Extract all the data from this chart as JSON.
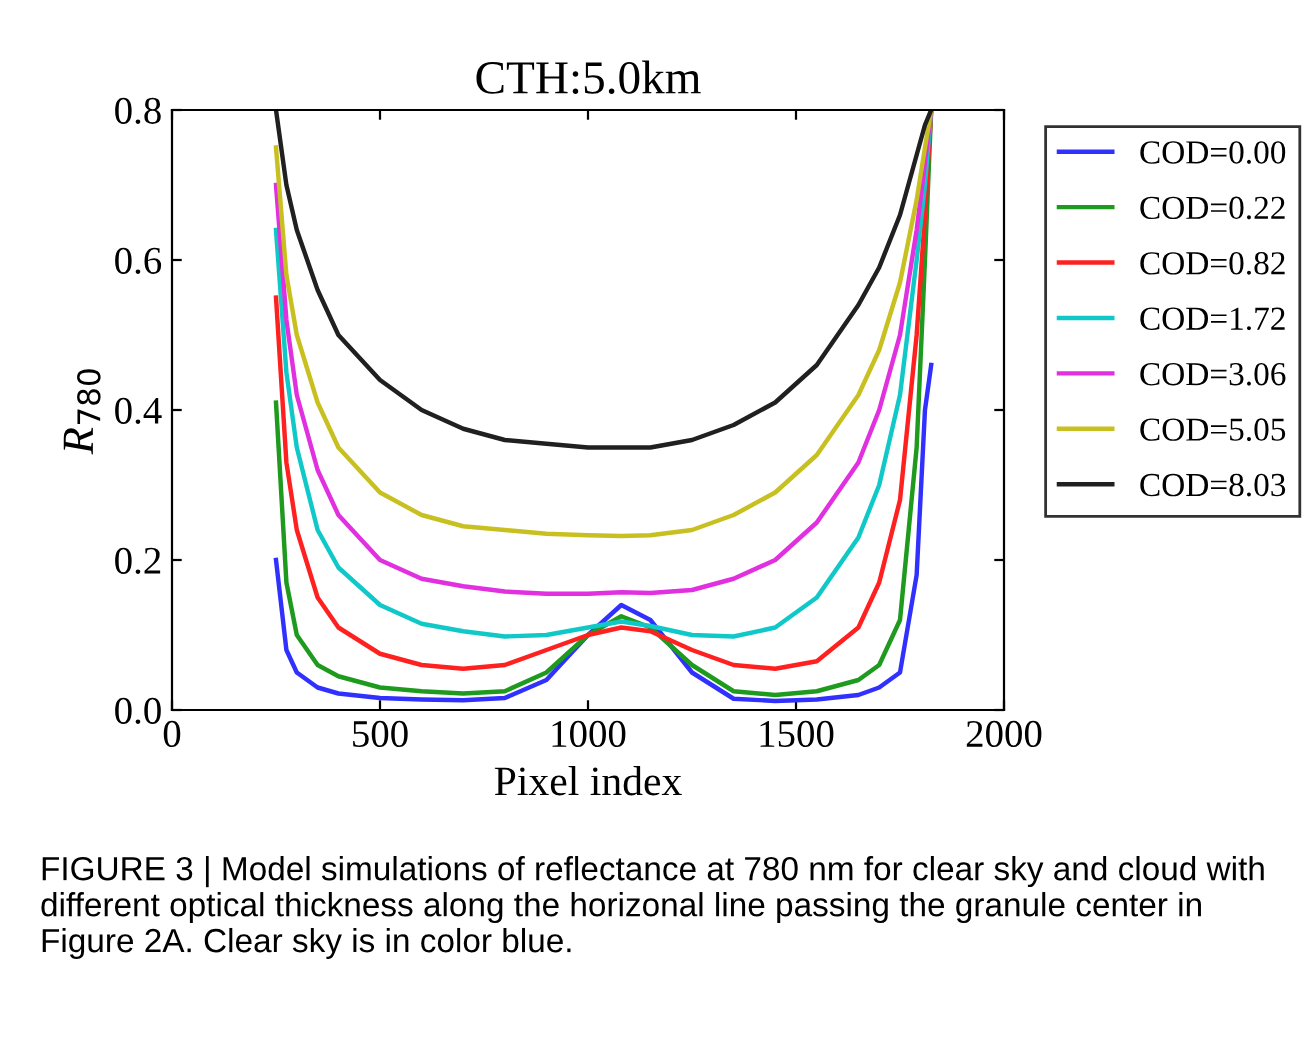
{
  "chart_data": {
    "type": "line",
    "title": "CTH:5.0km",
    "xlabel": "Pixel index",
    "ylabel": "R$_{780}$",
    "x": [
      250,
      275,
      300,
      350,
      400,
      500,
      600,
      700,
      800,
      900,
      1000,
      1080,
      1150,
      1250,
      1350,
      1450,
      1550,
      1650,
      1700,
      1750,
      1790,
      1810,
      1825
    ],
    "series": [
      {
        "name": "COD=0.00",
        "color": "#3030ff",
        "values": [
          0.2,
          0.08,
          0.05,
          0.03,
          0.022,
          0.016,
          0.014,
          0.013,
          0.016,
          0.04,
          0.1,
          0.14,
          0.12,
          0.05,
          0.015,
          0.012,
          0.014,
          0.02,
          0.03,
          0.05,
          0.18,
          0.4,
          0.46
        ]
      },
      {
        "name": "COD=0.22",
        "color": "#1e9a1e",
        "values": [
          0.41,
          0.17,
          0.1,
          0.06,
          0.045,
          0.03,
          0.025,
          0.022,
          0.025,
          0.05,
          0.1,
          0.125,
          0.11,
          0.06,
          0.025,
          0.02,
          0.025,
          0.04,
          0.06,
          0.12,
          0.35,
          0.6,
          0.8
        ]
      },
      {
        "name": "COD=0.82",
        "color": "#ff2020",
        "values": [
          0.55,
          0.33,
          0.24,
          0.15,
          0.11,
          0.075,
          0.06,
          0.055,
          0.06,
          0.08,
          0.1,
          0.11,
          0.105,
          0.08,
          0.06,
          0.055,
          0.065,
          0.11,
          0.17,
          0.28,
          0.5,
          0.66,
          0.8
        ]
      },
      {
        "name": "COD=1.72",
        "color": "#10c8c8",
        "values": [
          0.64,
          0.45,
          0.35,
          0.24,
          0.19,
          0.14,
          0.115,
          0.105,
          0.098,
          0.1,
          0.11,
          0.118,
          0.112,
          0.1,
          0.098,
          0.11,
          0.15,
          0.23,
          0.3,
          0.42,
          0.6,
          0.7,
          0.8
        ]
      },
      {
        "name": "COD=3.06",
        "color": "#e030e0",
        "values": [
          0.7,
          0.52,
          0.42,
          0.32,
          0.26,
          0.2,
          0.175,
          0.165,
          0.158,
          0.155,
          0.155,
          0.157,
          0.156,
          0.16,
          0.175,
          0.2,
          0.25,
          0.33,
          0.4,
          0.5,
          0.64,
          0.73,
          0.8
        ]
      },
      {
        "name": "COD=5.05",
        "color": "#c8c020",
        "values": [
          0.75,
          0.58,
          0.5,
          0.41,
          0.35,
          0.29,
          0.26,
          0.245,
          0.24,
          0.235,
          0.233,
          0.232,
          0.233,
          0.24,
          0.26,
          0.29,
          0.34,
          0.42,
          0.48,
          0.57,
          0.68,
          0.75,
          0.8
        ]
      },
      {
        "name": "COD=8.03",
        "color": "#202020",
        "values": [
          0.8,
          0.7,
          0.64,
          0.56,
          0.5,
          0.44,
          0.4,
          0.375,
          0.36,
          0.355,
          0.35,
          0.35,
          0.35,
          0.36,
          0.38,
          0.41,
          0.46,
          0.54,
          0.59,
          0.66,
          0.74,
          0.78,
          0.8
        ]
      }
    ],
    "xlim": [
      0,
      2000
    ],
    "xticks": [
      0,
      500,
      1000,
      1500,
      2000
    ],
    "ylim": [
      0,
      0.8
    ],
    "yticks": [
      {
        "value": 0,
        "label": "0.0"
      },
      0.2,
      0.4,
      0.6,
      0.8
    ],
    "grid": false,
    "legend": "right",
    "marker": "none",
    "line_style": "solid",
    "annotations": [
      "FIGURE 3 | Model simulations of reflectance at 780 nm for clear sky and cloud with different optical thickness along the horizonal line passing the granule center in Figure 2A. Clear sky is in color blue."
    ]
  }
}
